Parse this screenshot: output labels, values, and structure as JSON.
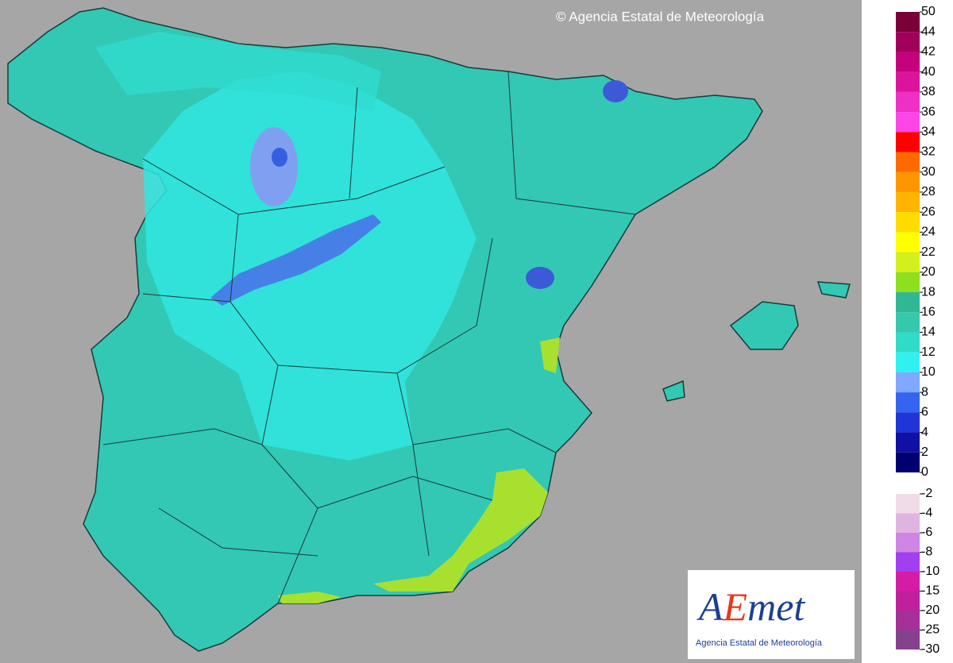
{
  "header": {
    "copyright": "© Agencia Estatal de Meteorología"
  },
  "legend": {
    "upper": {
      "labels": [
        50,
        44,
        42,
        40,
        38,
        36,
        34,
        32,
        30,
        28,
        26,
        24,
        22,
        20,
        18,
        16,
        14,
        12,
        10,
        8,
        6,
        4,
        2,
        0
      ],
      "colors": [
        "#7a0038",
        "#a0005a",
        "#c4007c",
        "#dc149c",
        "#ee30c4",
        "#ff44e8",
        "#ff0000",
        "#ff6a00",
        "#ff9600",
        "#ffb400",
        "#ffdc00",
        "#ffff00",
        "#d4f01c",
        "#8ce020",
        "#30b894",
        "#34c8ac",
        "#30dcc8",
        "#30f0f0",
        "#80a8ff",
        "#3464f0",
        "#2034d8",
        "#1010a4",
        "#000070"
      ]
    },
    "lower": {
      "labels": [
        -2,
        -4,
        -6,
        -8,
        -10,
        -15,
        -20,
        -25,
        -30
      ],
      "colors": [
        "#f0dce8",
        "#e0b4e0",
        "#d084e4",
        "#a040f0",
        "#d41ca4",
        "#c0209c",
        "#a43098",
        "#84428e"
      ]
    }
  },
  "logo": {
    "brand": [
      "A",
      "E",
      "met"
    ],
    "subtitle": "Agencia Estatal de Meteorología"
  }
}
